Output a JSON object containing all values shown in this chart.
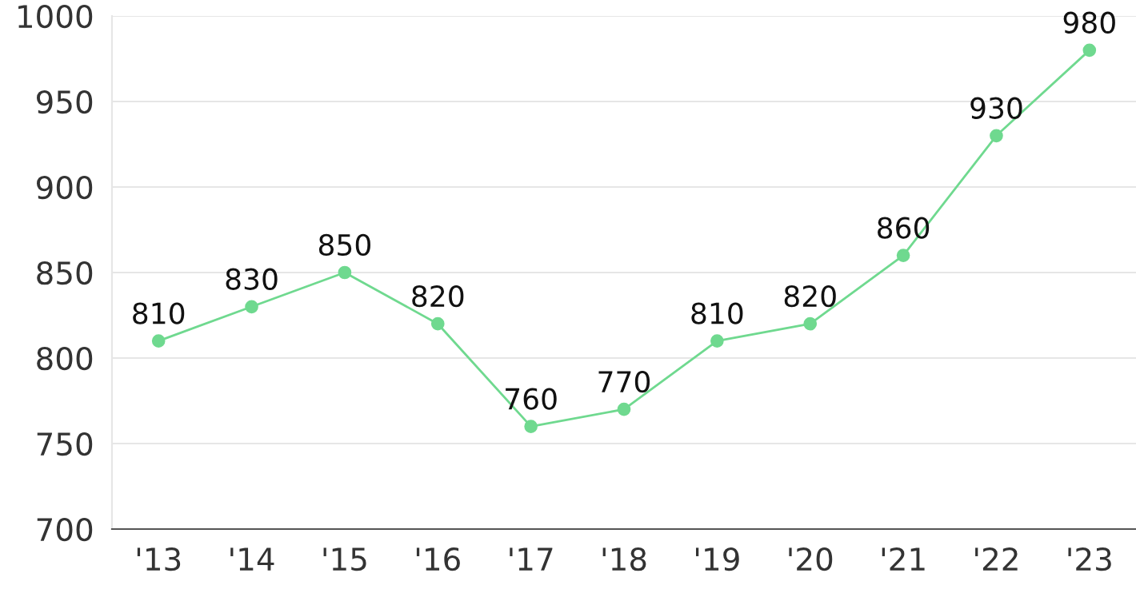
{
  "chart_data": {
    "type": "line",
    "categories": [
      "'13",
      "'14",
      "'15",
      "'16",
      "'17",
      "'18",
      "'19",
      "'20",
      "'21",
      "'22",
      "'23"
    ],
    "series": [
      {
        "color": "#6fd98f",
        "values": [
          810,
          830,
          850,
          820,
          760,
          770,
          810,
          820,
          860,
          930,
          980
        ]
      }
    ],
    "ylim": [
      700,
      1000
    ],
    "yticks": [
      700,
      750,
      800,
      850,
      900,
      950,
      1000
    ],
    "grid": "y",
    "marker": "circle",
    "line_style": "solid",
    "data_labels": true,
    "legend": false
  }
}
